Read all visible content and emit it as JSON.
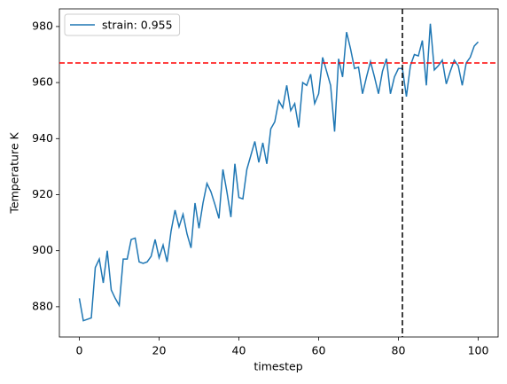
{
  "chart_data": {
    "type": "line",
    "xlabel": "timestep",
    "ylabel": "Temperature K",
    "x": [
      0,
      1,
      2,
      3,
      4,
      5,
      6,
      7,
      8,
      9,
      10,
      11,
      12,
      13,
      14,
      15,
      16,
      17,
      18,
      19,
      20,
      21,
      22,
      23,
      24,
      25,
      26,
      27,
      28,
      29,
      30,
      31,
      32,
      33,
      34,
      35,
      36,
      37,
      38,
      39,
      40,
      41,
      42,
      43,
      44,
      45,
      46,
      47,
      48,
      49,
      50,
      51,
      52,
      53,
      54,
      55,
      56,
      57,
      58,
      59,
      60,
      61,
      62,
      63,
      64,
      65,
      66,
      67,
      68,
      69,
      70,
      71,
      72,
      73,
      74,
      75,
      76,
      77,
      78,
      79,
      80,
      81,
      82,
      83,
      84,
      85,
      86,
      87,
      88,
      89,
      90,
      91,
      92,
      93,
      94,
      95,
      96,
      97,
      98,
      99,
      100
    ],
    "series": [
      {
        "name": "strain: 0.955",
        "color": "#1f77b4",
        "values": [
          883,
          875,
          875.5,
          876,
          894,
          897,
          888.5,
          900,
          886,
          883,
          880.5,
          897,
          897,
          904,
          904.5,
          896,
          895.5,
          896,
          898,
          904,
          897.5,
          902,
          896,
          907,
          914.5,
          908.5,
          913,
          906,
          901,
          917,
          908,
          917,
          924,
          921,
          916.5,
          911.5,
          929,
          921,
          912,
          931,
          919,
          918.5,
          929,
          934,
          939,
          931.5,
          938.5,
          931,
          943.5,
          946,
          953.5,
          951,
          959,
          950,
          952.5,
          944,
          960,
          959,
          963,
          952.5,
          956,
          969,
          964,
          959,
          942.5,
          968.5,
          962,
          978,
          972,
          965,
          965.5,
          956,
          962,
          967.5,
          962,
          956,
          964,
          968.5,
          956,
          962,
          965,
          965,
          955,
          966,
          970,
          969.5,
          975,
          959,
          981,
          964.5,
          966,
          968,
          959.5,
          964,
          968,
          966,
          959,
          967,
          969,
          973,
          974.5
        ]
      }
    ],
    "hline": {
      "value": 967,
      "color": "#ff0000"
    },
    "vline": {
      "value": 81,
      "color": "#000000"
    },
    "xlim": [
      -5,
      105
    ],
    "ylim": [
      869.2,
      986.3
    ],
    "xticks": [
      0,
      20,
      40,
      60,
      80,
      100
    ],
    "yticks": [
      880,
      900,
      920,
      940,
      960,
      980
    ],
    "legend": "upper left",
    "grid": false
  }
}
